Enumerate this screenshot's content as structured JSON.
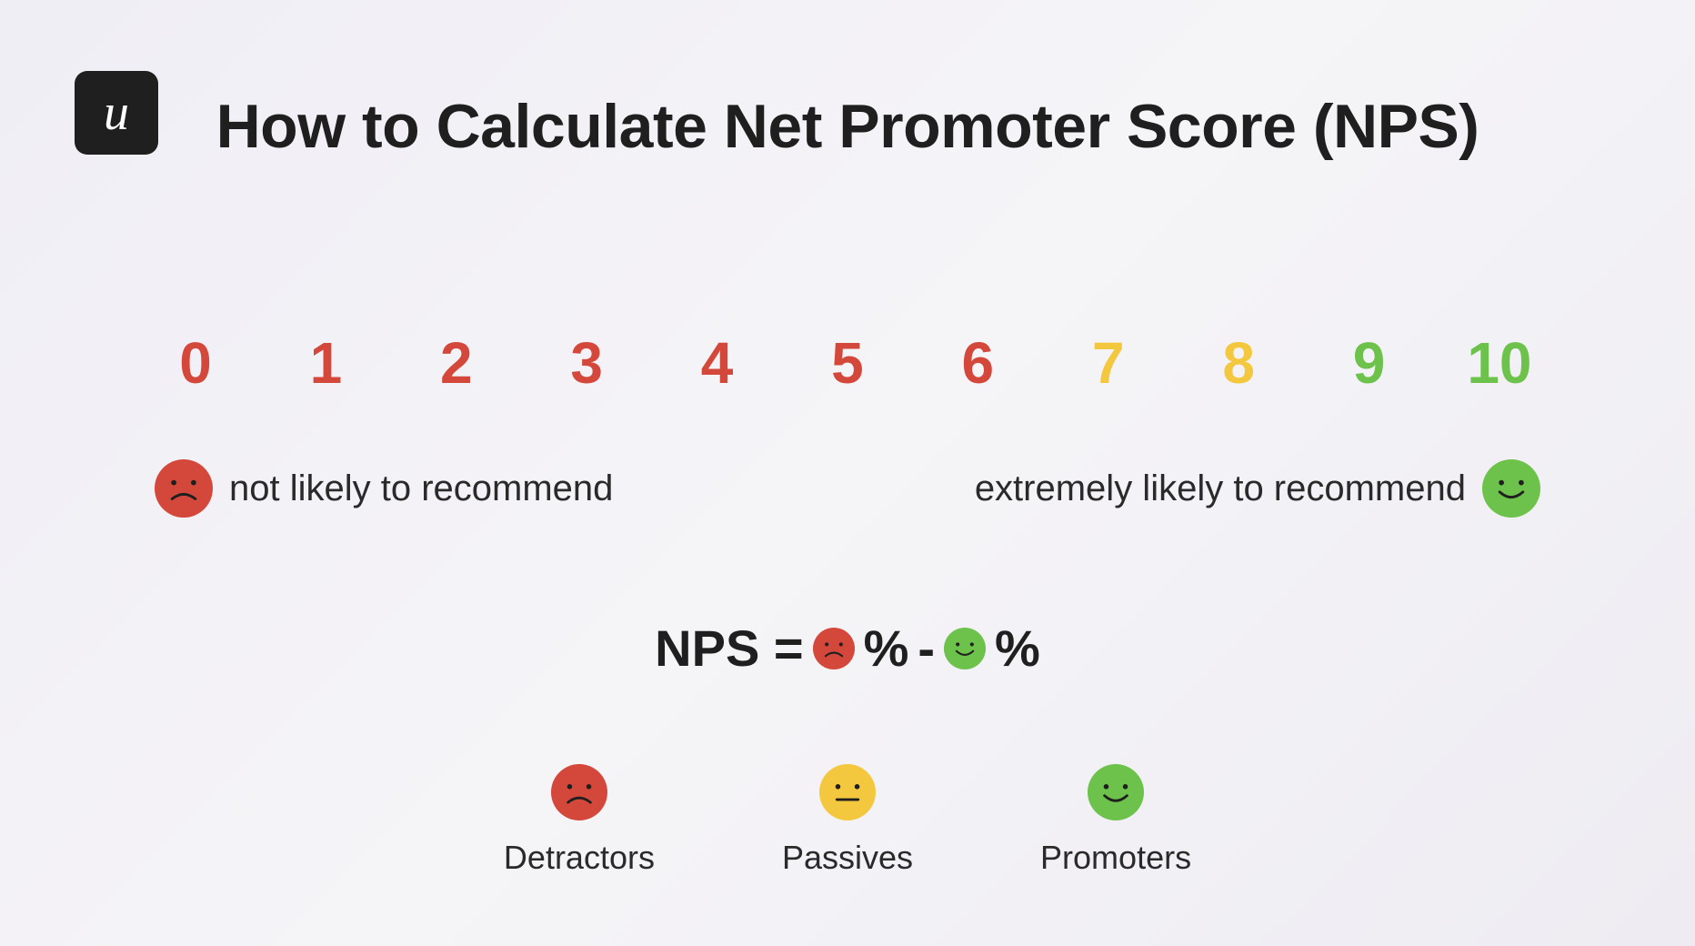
{
  "logo_glyph": "u",
  "title": "How to Calculate Net Promoter Score (NPS)",
  "colors": {
    "detractor": "#d4483b",
    "passive": "#f4c83e",
    "promoter": "#6dc24b",
    "text_dark": "#1f1f1f",
    "label_text": "#2a2a2a",
    "background_start": "#f0eef5",
    "background_end": "#eeecf2"
  },
  "scale": {
    "numbers": [
      "0",
      "1",
      "2",
      "3",
      "4",
      "5",
      "6",
      "7",
      "8",
      "9",
      "10"
    ],
    "number_colors": [
      "#d4483b",
      "#d4483b",
      "#d4483b",
      "#d4483b",
      "#d4483b",
      "#d4483b",
      "#d4483b",
      "#f4c83e",
      "#f4c83e",
      "#6dc24b",
      "#6dc24b"
    ],
    "number_fontsize": 64,
    "number_fontweight": 600
  },
  "low_label": "not likely to recommend",
  "high_label": "extremely likely to recommend",
  "label_fontsize": 40,
  "formula": {
    "prefix": "NPS =",
    "pct1": "%",
    "minus": "-",
    "pct2": "%",
    "fontsize": 56
  },
  "legend": {
    "items": [
      {
        "label": "Detractors",
        "face": "sad",
        "color": "#d4483b"
      },
      {
        "label": "Passives",
        "face": "neutral",
        "color": "#f4c83e"
      },
      {
        "label": "Promoters",
        "face": "happy",
        "color": "#6dc24b"
      }
    ],
    "label_fontsize": 36
  },
  "face_sizes": {
    "label_row": 64,
    "formula": 46,
    "legend": 62
  }
}
